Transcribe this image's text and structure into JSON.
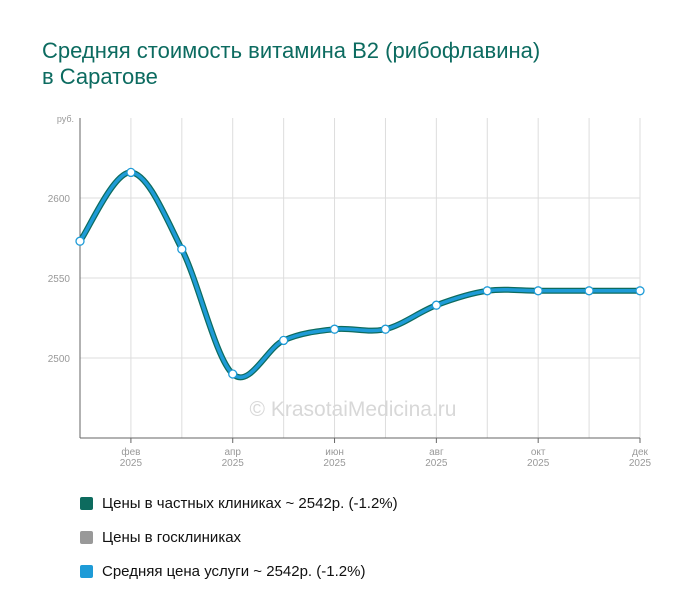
{
  "title": {
    "line1": "Средняя стоимость витамина B2 (рибофлавина)",
    "line2": "в Саратове"
  },
  "watermark": "© KrasotaiMedicina.ru",
  "colors": {
    "title": "#0c6b60",
    "private": "#0d6b5e",
    "public": "#999999",
    "average": "#1e9bd7",
    "grid": "#dddddd",
    "axis": "#666666",
    "tick_text": "#999999",
    "watermark": "#d8d8d8"
  },
  "chart_data": {
    "type": "line",
    "y_unit": "руб.",
    "ylim": [
      2450,
      2650
    ],
    "y_ticks": [
      {
        "value": 2500,
        "label": "2500"
      },
      {
        "value": 2550,
        "label": "2550"
      },
      {
        "value": 2600,
        "label": "2600"
      }
    ],
    "x_months": [
      1,
      2,
      3,
      4,
      5,
      6,
      7,
      8,
      9,
      10,
      11,
      12
    ],
    "x_tick_labels": [
      {
        "month": 2,
        "line1": "фев",
        "line2": "2025"
      },
      {
        "month": 4,
        "line1": "апр",
        "line2": "2025"
      },
      {
        "month": 6,
        "line1": "июн",
        "line2": "2025"
      },
      {
        "month": 8,
        "line1": "авг",
        "line2": "2025"
      },
      {
        "month": 10,
        "line1": "окт",
        "line2": "2025"
      },
      {
        "month": 12,
        "line1": "дек",
        "line2": "2025"
      }
    ],
    "grid": true,
    "series": [
      {
        "name": "Цены в частных клиниках ~ 2542р. (-1.2%)",
        "color": "#0d6b5e",
        "values": [
          2573,
          2616,
          2568,
          2490,
          2511,
          2518,
          2518,
          2533,
          2542,
          2542,
          2542,
          2542
        ]
      },
      {
        "name": "Средняя цена услуги ~ 2542р. (-1.2%)",
        "color": "#1e9bd7",
        "values": [
          2573,
          2616,
          2568,
          2490,
          2511,
          2518,
          2518,
          2533,
          2542,
          2542,
          2542,
          2542
        ]
      }
    ],
    "legend": [
      {
        "label": "Цены в частных клиниках ~ 2542р. (-1.2%)",
        "color": "#0d6b5e"
      },
      {
        "label": "Цены в госклиниках",
        "color": "#999999"
      },
      {
        "label": "Средняя цена услуги ~ 2542р. (-1.2%)",
        "color": "#1e9bd7"
      }
    ],
    "legend_position": "bottom"
  }
}
